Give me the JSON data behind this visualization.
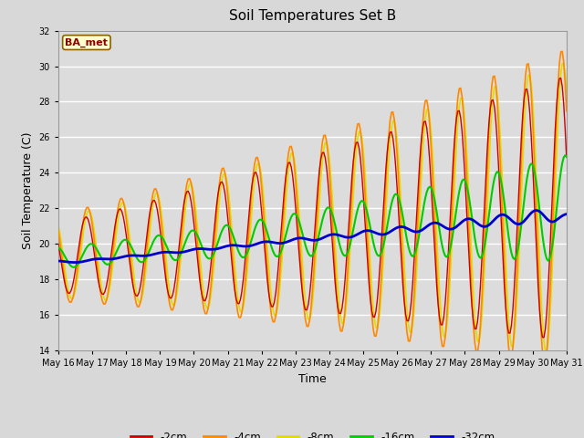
{
  "title": "Soil Temperatures Set B",
  "xlabel": "Time",
  "ylabel": "Soil Temperature (C)",
  "ylim": [
    14,
    32
  ],
  "yticks": [
    14,
    16,
    18,
    20,
    22,
    24,
    26,
    28,
    30,
    32
  ],
  "start_day": 16,
  "end_day": 31,
  "annotation_text": "BA_met",
  "colors": {
    "-2cm": "#cc0000",
    "-4cm": "#ff8800",
    "-8cm": "#dddd00",
    "-16cm": "#00cc00",
    "-32cm": "#0000cc"
  },
  "legend_labels": [
    "-2cm",
    "-4cm",
    "-8cm",
    "-16cm",
    "-32cm"
  ],
  "fig_bg_color": "#d8d8d8",
  "plot_bg_color": "#dcdcdc",
  "grid_color": "#ffffff"
}
